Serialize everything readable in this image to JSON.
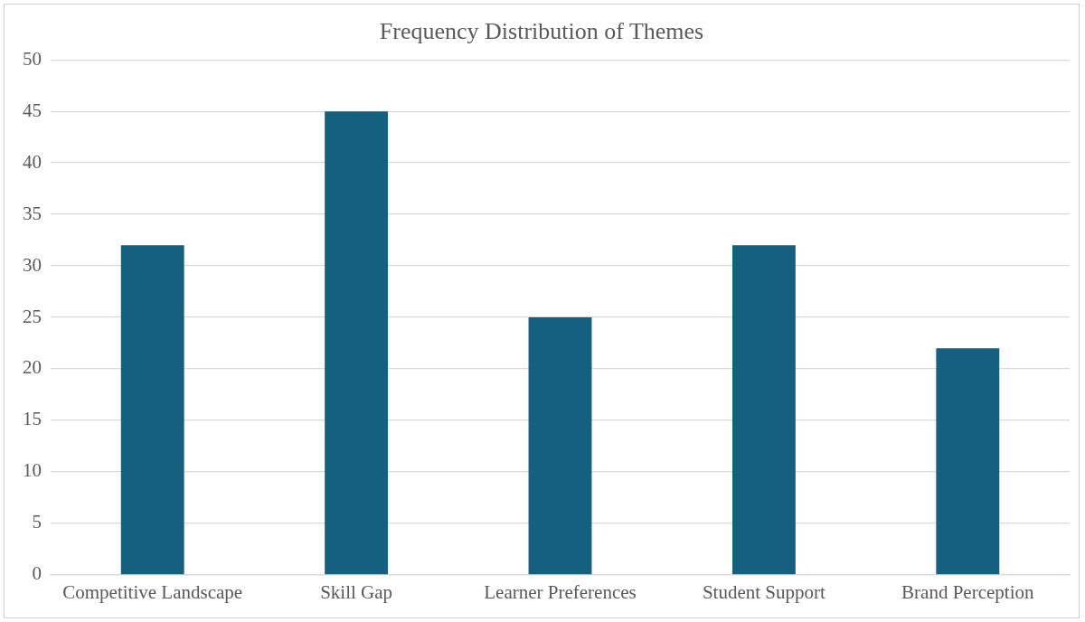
{
  "chart_data": {
    "type": "bar",
    "title": "Frequency Distribution of Themes",
    "categories": [
      "Competitive Landscape",
      "Skill Gap",
      "Learner Preferences",
      "Student Support",
      "Brand Perception"
    ],
    "values": [
      32,
      45,
      25,
      32,
      22
    ],
    "color": "#155f7f",
    "ylim": [
      0,
      50
    ],
    "yticks": [
      0,
      5,
      10,
      15,
      20,
      25,
      30,
      35,
      40,
      45,
      50
    ],
    "grid": "y",
    "legend": false
  }
}
